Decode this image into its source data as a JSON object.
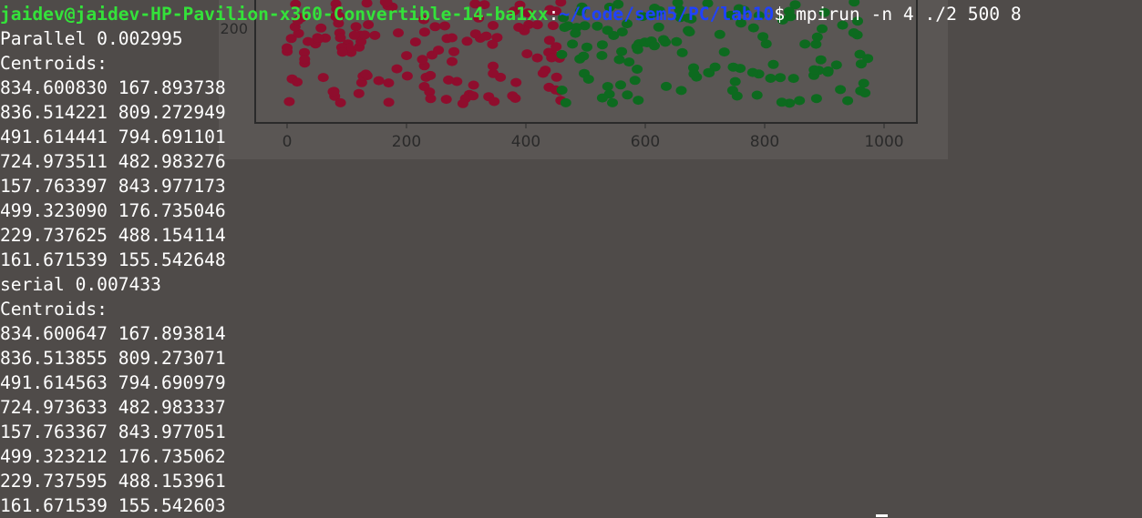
{
  "terminal": {
    "prompt": {
      "user_host": "jaidev@jaidev-HP-Pavilion-x360-Convertible-14-ba1xx",
      "colon": ":",
      "path": "~/Code/sem5/PC/lab10",
      "dollar": "$",
      "command": " mpirun -n 4 ./2 500 8"
    },
    "lines": [
      "Parallel 0.002995",
      "Centroids:",
      "834.600830 167.893738",
      "836.514221 809.272949",
      "491.614441 794.691101",
      "724.973511 482.983276",
      "157.763397 843.977173",
      "499.323090 176.735046",
      "229.737625 488.154114",
      "161.671539 155.542648",
      "serial 0.007433",
      "Centroids:",
      "834.600647 167.893814",
      "836.513855 809.273071",
      "491.614563 794.690979",
      "724.973633 482.983337",
      "157.763367 843.977051",
      "499.323212 176.735062",
      "229.737595 488.153961",
      "161.671539 155.542603"
    ]
  },
  "background_plot": {
    "y_tick_visible": "200",
    "x_ticks": [
      "0",
      "200",
      "400",
      "600",
      "800",
      "1000"
    ],
    "colors": {
      "cluster_left": "#8f0d2d",
      "cluster_right": "#0d6a1f",
      "axis": "#2a2a2a"
    }
  },
  "colors": {
    "terminal_bg": "#4f4b49",
    "prompt_user": "#34e23a",
    "prompt_path": "#1f42ff",
    "text": "#ffffff"
  }
}
